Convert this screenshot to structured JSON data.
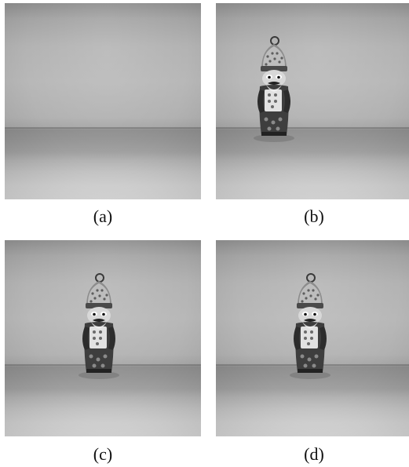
{
  "captions": {
    "a": "(a)",
    "b": "(b)",
    "c": "(c)",
    "d": "(d)"
  },
  "panels": [
    {
      "id": "a",
      "has_figurine": false
    },
    {
      "id": "b",
      "has_figurine": true
    },
    {
      "id": "c",
      "has_figurine": true
    },
    {
      "id": "d",
      "has_figurine": true
    }
  ]
}
